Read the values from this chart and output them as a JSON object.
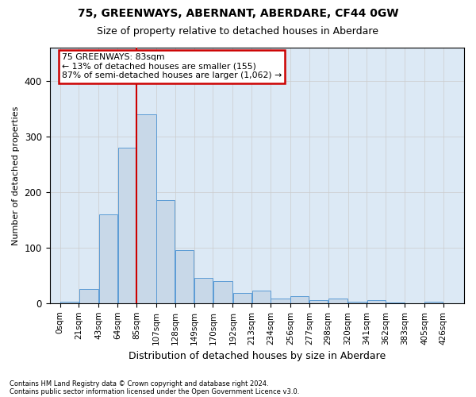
{
  "title": "75, GREENWAYS, ABERNANT, ABERDARE, CF44 0GW",
  "subtitle": "Size of property relative to detached houses in Aberdare",
  "xlabel": "Distribution of detached houses by size in Aberdare",
  "ylabel": "Number of detached properties",
  "footnote1": "Contains HM Land Registry data © Crown copyright and database right 2024.",
  "footnote2": "Contains public sector information licensed under the Open Government Licence v3.0.",
  "bin_labels": [
    "0sqm",
    "21sqm",
    "43sqm",
    "64sqm",
    "85sqm",
    "107sqm",
    "128sqm",
    "149sqm",
    "170sqm",
    "192sqm",
    "213sqm",
    "234sqm",
    "256sqm",
    "277sqm",
    "298sqm",
    "320sqm",
    "341sqm",
    "362sqm",
    "383sqm",
    "405sqm",
    "426sqm"
  ],
  "bar_heights": [
    2,
    25,
    160,
    280,
    340,
    185,
    95,
    45,
    40,
    18,
    22,
    8,
    12,
    5,
    8,
    3,
    5,
    1,
    0,
    2,
    0
  ],
  "bar_color": "#c8d8e8",
  "bar_edge_color": "#5b9bd5",
  "grid_color": "#cccccc",
  "annotation_line1": "75 GREENWAYS: 83sqm",
  "annotation_line2": "← 13% of detached houses are smaller (155)",
  "annotation_line3": "87% of semi-detached houses are larger (1,062) →",
  "annotation_box_color": "#ffffff",
  "annotation_box_edge": "#cc0000",
  "vline_color": "#cc0000",
  "ylim": [
    0,
    460
  ],
  "bin_width": 21,
  "background_color": "#ffffff",
  "plot_bg_color": "#dce9f5"
}
